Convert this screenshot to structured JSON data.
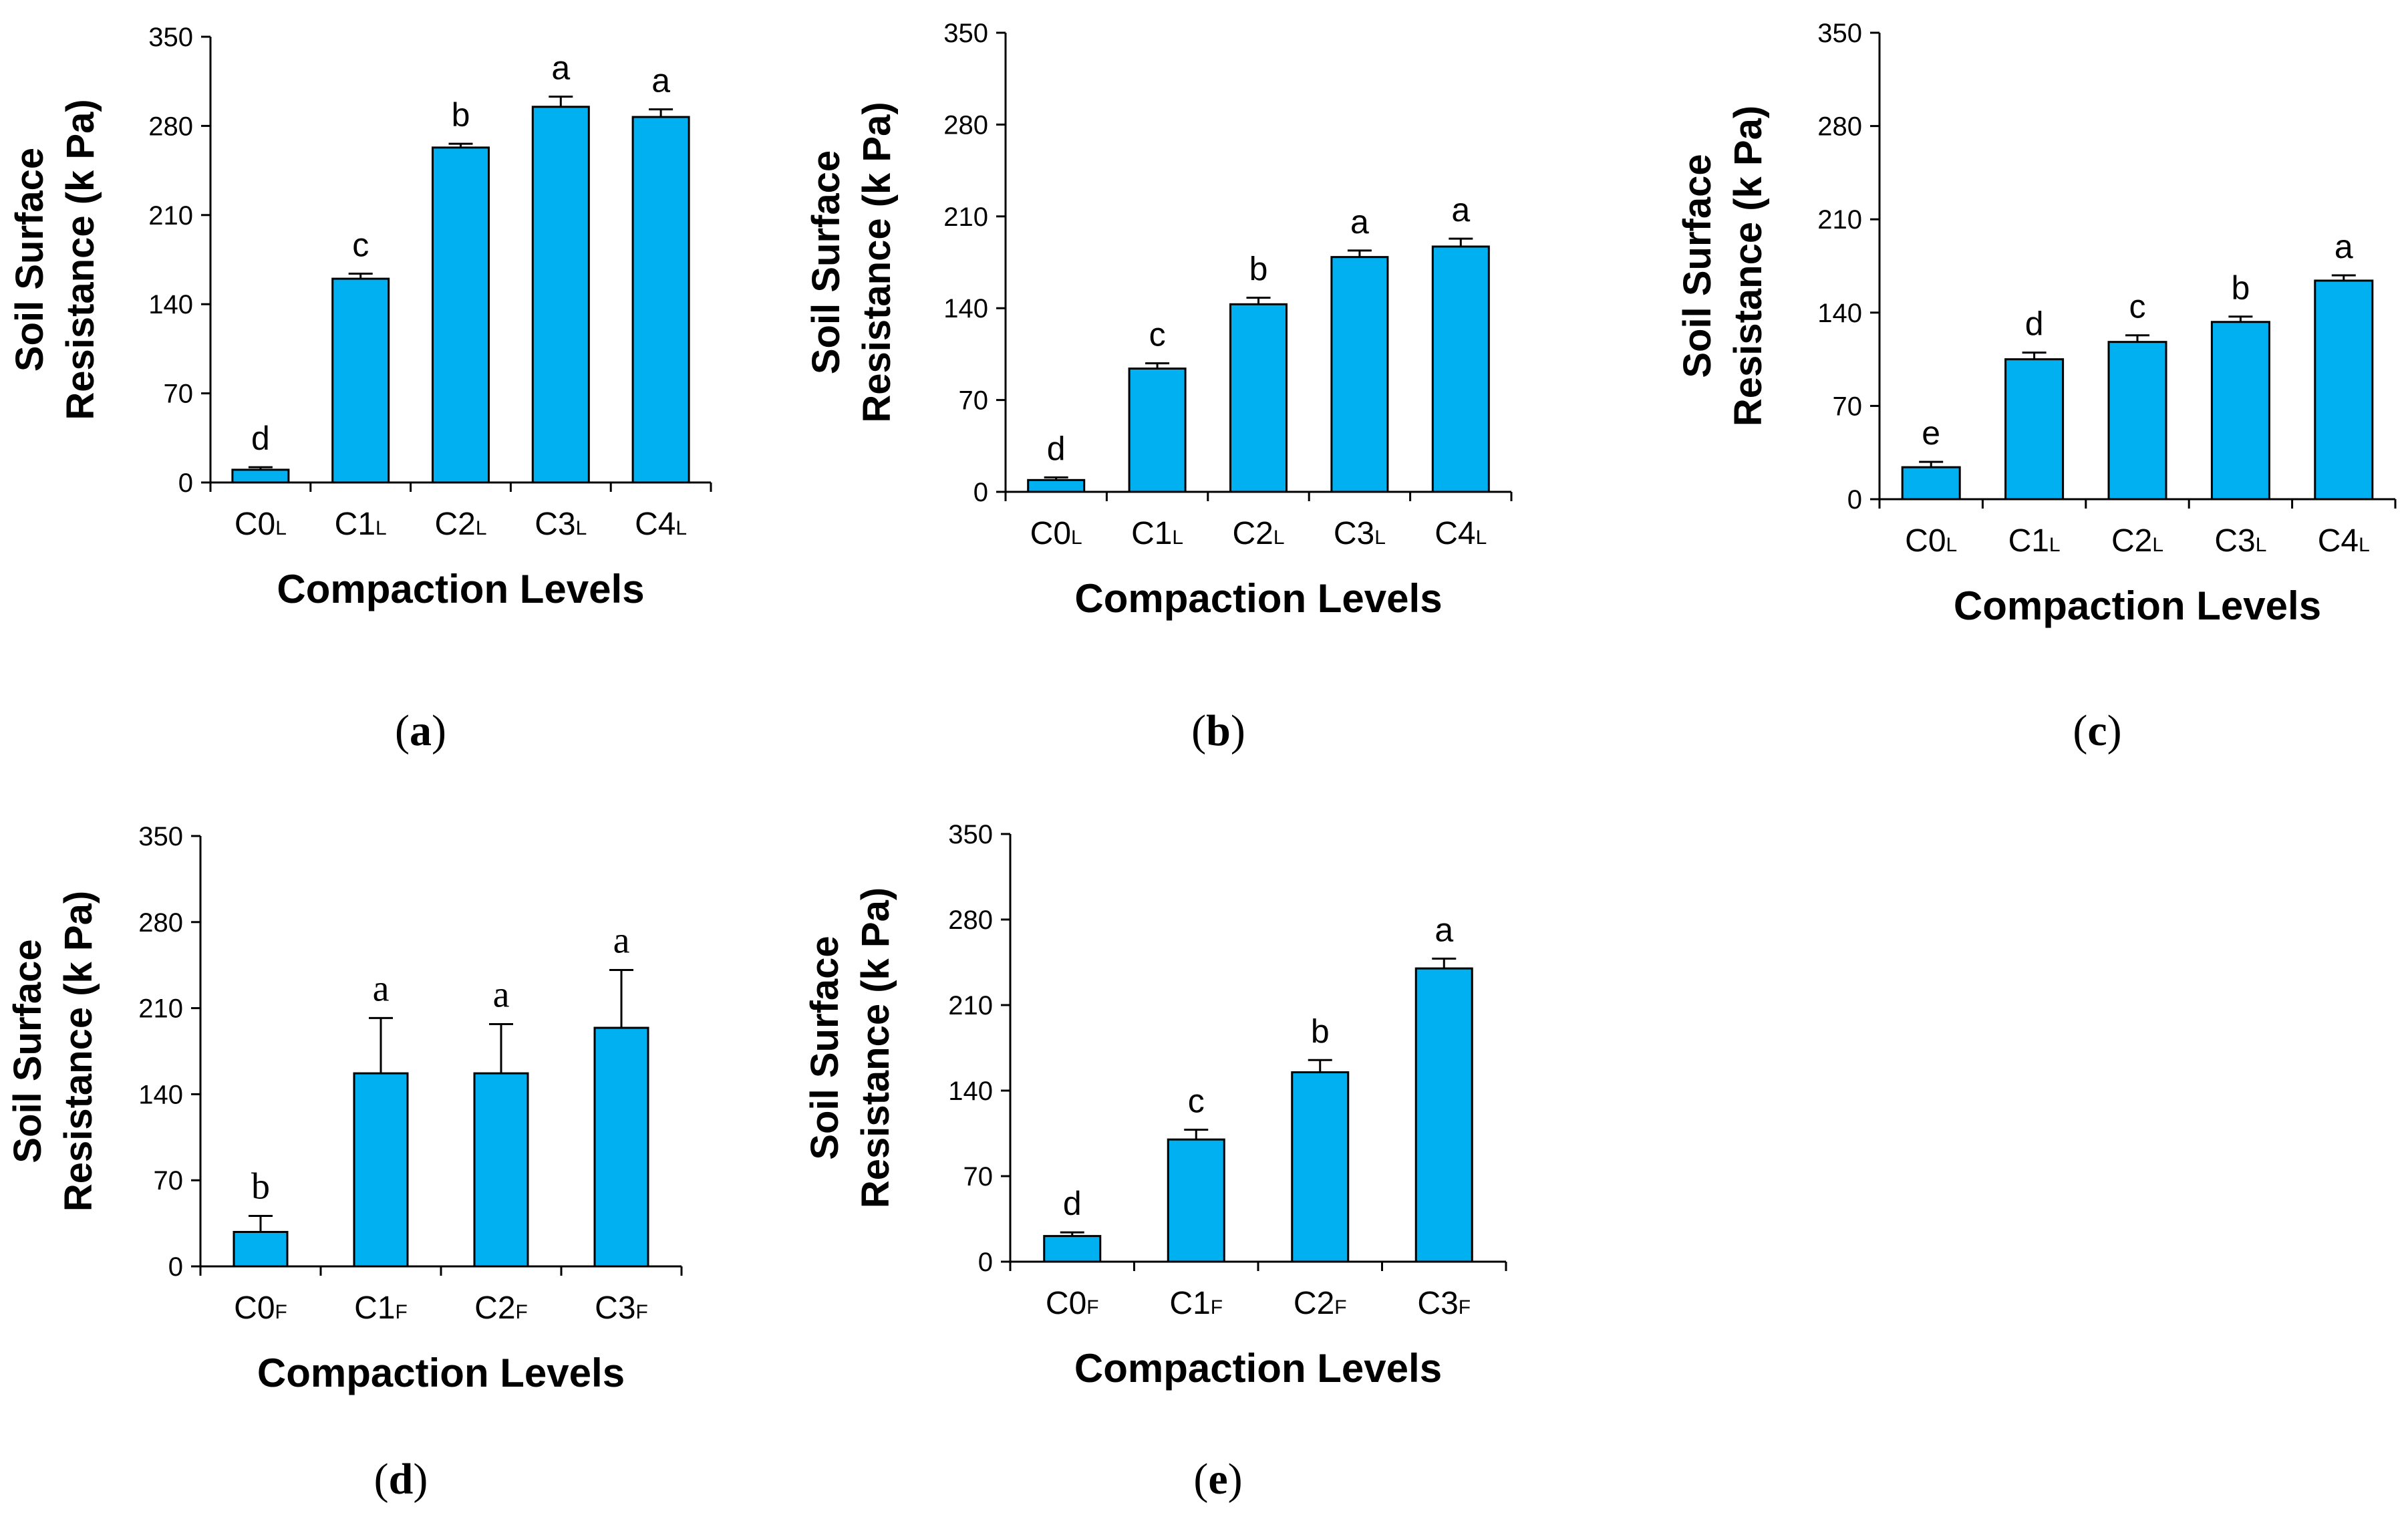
{
  "chart_data": [
    {
      "id": "a",
      "panel_label": "a",
      "type": "bar",
      "ylabel_lines": [
        "Soil Surface",
        "Resistance (k Pa)"
      ],
      "xlabel": "Compaction Levels",
      "ylim": [
        0,
        350
      ],
      "yticks": [
        0,
        70,
        140,
        210,
        280,
        350
      ],
      "categories": [
        {
          "base": "C0",
          "sub": "L"
        },
        {
          "base": "C1",
          "sub": "L"
        },
        {
          "base": "C2",
          "sub": "L"
        },
        {
          "base": "C3",
          "sub": "L"
        },
        {
          "base": "C4",
          "sub": "L"
        }
      ],
      "values": [
        10,
        160,
        263,
        295,
        287
      ],
      "errors": [
        2,
        4,
        3,
        8,
        6
      ],
      "letters": [
        "d",
        "c",
        "b",
        "a",
        "a"
      ],
      "letter_font": "sans",
      "bar_color": "#00B0F0"
    },
    {
      "id": "b",
      "panel_label": "b",
      "type": "bar",
      "ylabel_lines": [
        "Soil Surface",
        "Resistance (k Pa)"
      ],
      "xlabel": "Compaction Levels",
      "ylim": [
        0,
        350
      ],
      "yticks": [
        0,
        70,
        140,
        210,
        280,
        350
      ],
      "categories": [
        {
          "base": "C0",
          "sub": "L"
        },
        {
          "base": "C1",
          "sub": "L"
        },
        {
          "base": "C2",
          "sub": "L"
        },
        {
          "base": "C3",
          "sub": "L"
        },
        {
          "base": "C4",
          "sub": "L"
        }
      ],
      "values": [
        9,
        94,
        143,
        179,
        187
      ],
      "errors": [
        2,
        4,
        5,
        5,
        6
      ],
      "letters": [
        "d",
        "c",
        "b",
        "a",
        "a"
      ],
      "letter_font": "sans",
      "bar_color": "#00B0F0"
    },
    {
      "id": "c",
      "panel_label": "c",
      "type": "bar",
      "ylabel_lines": [
        "Soil Surface",
        "Resistance (k Pa)"
      ],
      "xlabel": "Compaction Levels",
      "ylim": [
        0,
        350
      ],
      "yticks": [
        0,
        70,
        140,
        210,
        280,
        350
      ],
      "categories": [
        {
          "base": "C0",
          "sub": "L"
        },
        {
          "base": "C1",
          "sub": "L"
        },
        {
          "base": "C2",
          "sub": "L"
        },
        {
          "base": "C3",
          "sub": "L"
        },
        {
          "base": "C4",
          "sub": "L"
        }
      ],
      "values": [
        24,
        105,
        118,
        133,
        164
      ],
      "errors": [
        4,
        5,
        5,
        4,
        4
      ],
      "letters": [
        "e",
        "d",
        "c",
        "b",
        "a"
      ],
      "letter_font": "sans",
      "bar_color": "#00B0F0"
    },
    {
      "id": "d",
      "panel_label": "d",
      "type": "bar",
      "ylabel_lines": [
        "Soil Surface",
        "Resistance (k Pa)"
      ],
      "xlabel": "Compaction Levels",
      "ylim": [
        0,
        350
      ],
      "yticks": [
        0,
        70,
        140,
        210,
        280,
        350
      ],
      "categories": [
        {
          "base": "C0",
          "sub": "F"
        },
        {
          "base": "C1",
          "sub": "F"
        },
        {
          "base": "C2",
          "sub": "F"
        },
        {
          "base": "C3",
          "sub": "F"
        }
      ],
      "values": [
        28,
        157,
        157,
        194
      ],
      "errors": [
        13,
        45,
        40,
        47
      ],
      "letters": [
        "b",
        "a",
        "a",
        "a"
      ],
      "letter_font": "serif",
      "bar_color": "#00B0F0"
    },
    {
      "id": "e",
      "panel_label": "e",
      "type": "bar",
      "ylabel_lines": [
        "Soil Surface",
        "Resistance (k Pa)"
      ],
      "xlabel": "Compaction Levels",
      "ylim": [
        0,
        350
      ],
      "yticks": [
        0,
        70,
        140,
        210,
        280,
        350
      ],
      "categories": [
        {
          "base": "C0",
          "sub": "F"
        },
        {
          "base": "C1",
          "sub": "F"
        },
        {
          "base": "C2",
          "sub": "F"
        },
        {
          "base": "C3",
          "sub": "F"
        }
      ],
      "values": [
        21,
        100,
        155,
        240
      ],
      "errors": [
        3,
        8,
        10,
        8
      ],
      "letters": [
        "d",
        "c",
        "b",
        "a"
      ],
      "letter_font": "sans",
      "bar_color": "#00B0F0"
    }
  ]
}
